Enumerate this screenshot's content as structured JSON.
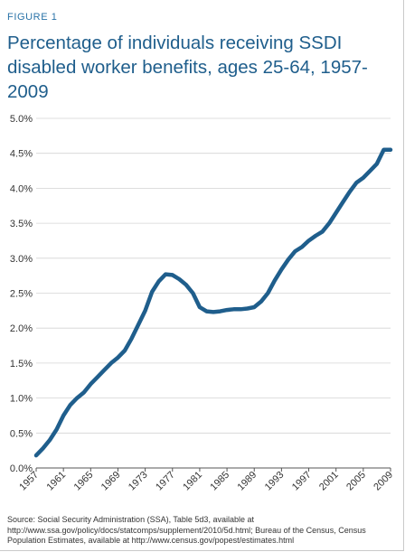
{
  "figure_label": "FIGURE 1",
  "chart_data": {
    "type": "line",
    "title": "Percentage of individuals receiving SSDI disabled worker benefits, ages 25-64, 1957-2009",
    "xlabel": "",
    "ylabel": "",
    "xlim": [
      1957,
      2009
    ],
    "ylim": [
      0,
      5.0
    ],
    "y_ticks": [
      "0.0%",
      "0.5%",
      "1.0%",
      "1.5%",
      "2.0%",
      "2.5%",
      "3.0%",
      "3.5%",
      "4.0%",
      "4.5%",
      "5.0%"
    ],
    "x_ticks": [
      "1957",
      "1961",
      "1965",
      "1969",
      "1973",
      "1977",
      "1981",
      "1985",
      "1989",
      "1993",
      "1997",
      "2001",
      "2005",
      "2009"
    ],
    "grid": "horizontal",
    "line_color": "#1f5e8c",
    "series": [
      {
        "x": [
          1957,
          1958,
          1959,
          1960,
          1961,
          1962,
          1963,
          1964,
          1965,
          1966,
          1967,
          1968,
          1969,
          1970,
          1971,
          1972,
          1973,
          1974,
          1975,
          1976,
          1977,
          1978,
          1979,
          1980,
          1981,
          1982,
          1983,
          1984,
          1985,
          1986,
          1987,
          1988,
          1989,
          1990,
          1991,
          1992,
          1993,
          1994,
          1995,
          1996,
          1997,
          1998,
          1999,
          2000,
          2001,
          2002,
          2003,
          2004,
          2005,
          2006,
          2007,
          2008,
          2009
        ],
        "values": [
          0.18,
          0.28,
          0.4,
          0.55,
          0.75,
          0.9,
          1.0,
          1.08,
          1.2,
          1.3,
          1.4,
          1.5,
          1.58,
          1.68,
          1.85,
          2.05,
          2.25,
          2.52,
          2.67,
          2.77,
          2.76,
          2.7,
          2.62,
          2.5,
          2.3,
          2.24,
          2.23,
          2.24,
          2.26,
          2.27,
          2.27,
          2.28,
          2.3,
          2.38,
          2.5,
          2.68,
          2.84,
          2.98,
          3.1,
          3.16,
          3.25,
          3.32,
          3.38,
          3.5,
          3.65,
          3.8,
          3.95,
          4.08,
          4.15,
          4.25,
          4.35,
          4.55,
          4.55
        ]
      }
    ]
  },
  "source_text": "Source: Social Security Administration (SSA), Table 5d3, available at http://www.ssa.gov/policy/docs/statcomps/supplement/2010/5d.html; Bureau of the Census, Census Population Estimates, available at http://www.census.gov/popest/estimates.html"
}
